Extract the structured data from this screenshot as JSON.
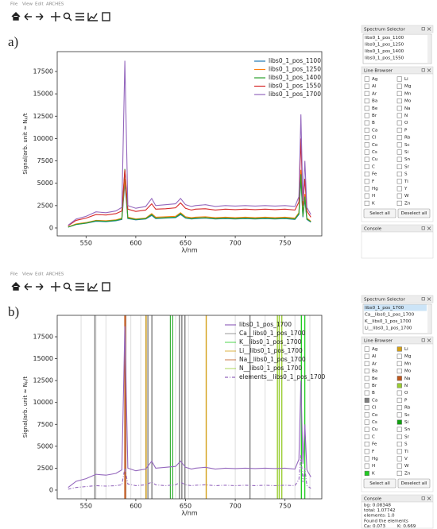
{
  "panels": [
    {
      "label": "a)",
      "menu": [
        "File",
        "View",
        "Edit",
        "ARCHES"
      ],
      "spectrum_selector": {
        "title": "Spectrum Selector",
        "items": [
          "libs0_1_pos_1100",
          "libs0_1_pos_1250",
          "libs0_1_pos_1400",
          "libs0_1_pos_1550"
        ]
      },
      "line_browser": {
        "title": "Line Browser",
        "columns": [
          [
            "Ag",
            "Al",
            "Ar",
            "Ba",
            "Be",
            "Br",
            "B",
            "Ca",
            "Cl",
            "Co",
            "Cs",
            "Cu",
            "C",
            "Fe",
            "F",
            "Hg",
            "H",
            "K"
          ],
          [
            "Li",
            "Mg",
            "Mn",
            "Mo",
            "Na",
            "N",
            "O",
            "P",
            "Rb",
            "Sc",
            "Si",
            "Sn",
            "Sr",
            "S",
            "Ti",
            "Y",
            "W",
            "Zn"
          ]
        ],
        "buttons": [
          "Select all",
          "Deselect all"
        ]
      },
      "console": {
        "title": "Console",
        "lines": []
      }
    },
    {
      "label": "b)",
      "menu": [
        "File",
        "View",
        "Edit",
        "ARCHES"
      ],
      "spectrum_selector": {
        "title": "Spectrum Selector",
        "items": [
          "libs0_1_pos_1700",
          "Ca__libs0_1_pos_1700",
          "K__libs0_1_pos_1700",
          "Li__libs0_1_pos_1700"
        ],
        "selected": 0
      },
      "line_browser": {
        "title": "Line Browser",
        "columns": [
          [
            "Ag",
            "Al",
            "Ar",
            "Ba",
            "Be",
            "Br",
            "B",
            "Ca",
            "Cl",
            "Co",
            "Cs",
            "Cu",
            "C",
            "Fe",
            "F",
            "Hg",
            "H",
            "K"
          ],
          [
            "Li",
            "Mg",
            "Mn",
            "Mo",
            "Na",
            "N",
            "O",
            "P",
            "Rb",
            "Sc",
            "Si",
            "Sn",
            "Sr",
            "S",
            "Ti",
            "V",
            "W",
            "Zn"
          ]
        ],
        "colored": {
          "Ca": "#7f7f7f",
          "K": "#22cc22",
          "Li": "#d4a017",
          "Na": "#c0561a",
          "N": "#9acd32",
          "Si": "#10a010"
        },
        "buttons": [
          "Select all",
          "Deselect all"
        ]
      },
      "console": {
        "title": "Console",
        "lines": [
          [
            "bg: 0.08348"
          ],
          [
            "total: 1.07742"
          ],
          [
            "elements: 1.0"
          ],
          [
            "Found the elements"
          ],
          [
            "Ca: 0.073",
            "K: 0.669"
          ]
        ]
      }
    }
  ],
  "chart_data": [
    {
      "type": "line",
      "xlabel": "λ/nm",
      "ylabel": "Signal/arb. unit ≈ Nₚ/t",
      "xlim": [
        521,
        787
      ],
      "ylim": [
        -890,
        19720
      ],
      "xticks": [
        550,
        600,
        650,
        700,
        750
      ],
      "yticks": [
        0,
        2500,
        5000,
        7500,
        10000,
        12500,
        15000,
        17500
      ],
      "legend": "upper right",
      "x": [
        532,
        540,
        550,
        560,
        570,
        580,
        586,
        589,
        592,
        600,
        610,
        616,
        620,
        630,
        640,
        645,
        650,
        656,
        660,
        670,
        680,
        690,
        700,
        710,
        720,
        730,
        740,
        750,
        760,
        764,
        766,
        768,
        770,
        772,
        776
      ],
      "series": [
        {
          "name": "libs0_1_pos_1100",
          "color": "#1f77b4",
          "values": [
            90,
            380,
            520,
            750,
            700,
            800,
            950,
            5000,
            1050,
            900,
            1000,
            1400,
            1050,
            1100,
            1150,
            1500,
            1100,
            1000,
            1050,
            1100,
            1000,
            1050,
            1000,
            1050,
            1000,
            1050,
            1000,
            1050,
            950,
            1500,
            5500,
            1200,
            3200,
            950,
            650
          ]
        },
        {
          "name": "libs0_1_pos_1250",
          "color": "#ff7f0e",
          "values": [
            120,
            450,
            600,
            850,
            800,
            900,
            1100,
            5500,
            1200,
            1000,
            1100,
            1600,
            1200,
            1250,
            1300,
            1700,
            1250,
            1150,
            1200,
            1250,
            1150,
            1200,
            1150,
            1200,
            1150,
            1200,
            1150,
            1200,
            1100,
            1700,
            6500,
            1400,
            3800,
            1100,
            750
          ]
        },
        {
          "name": "libs0_1_pos_1400",
          "color": "#2ca02c",
          "values": [
            100,
            400,
            550,
            800,
            750,
            850,
            1000,
            6600,
            1100,
            950,
            1050,
            1500,
            1100,
            1150,
            1200,
            1600,
            1150,
            1050,
            1100,
            1150,
            1050,
            1100,
            1050,
            1100,
            1050,
            1100,
            1050,
            1100,
            1000,
            1600,
            6000,
            1300,
            3500,
            1000,
            700
          ]
        },
        {
          "name": "libs0_1_pos_1550",
          "color": "#d62728",
          "values": [
            250,
            850,
            1100,
            1500,
            1450,
            1600,
            1900,
            6500,
            2100,
            1850,
            2000,
            2700,
            2100,
            2150,
            2250,
            2800,
            2200,
            2000,
            2100,
            2150,
            2000,
            2100,
            2050,
            2100,
            2050,
            2100,
            2050,
            2100,
            2000,
            2900,
            10000,
            2500,
            5500,
            1900,
            1200
          ]
        },
        {
          "name": "libs0_1_pos_1700",
          "color": "#9467bd",
          "values": [
            300,
            1000,
            1300,
            1800,
            1700,
            1900,
            2300,
            18700,
            2500,
            2200,
            2400,
            3300,
            2500,
            2600,
            2700,
            3300,
            2600,
            2400,
            2500,
            2600,
            2400,
            2500,
            2450,
            2500,
            2450,
            2500,
            2450,
            2500,
            2400,
            3500,
            12700,
            3000,
            7500,
            2300,
            1500
          ]
        }
      ]
    },
    {
      "type": "line",
      "xlabel": "λ/nm",
      "ylabel": "Signal/arb. unit ≈ Nₚ/t",
      "xlim": [
        521,
        787
      ],
      "ylim": [
        -1000,
        19950
      ],
      "xticks": [
        550,
        600,
        650,
        700,
        750
      ],
      "yticks": [
        0,
        2500,
        5000,
        7500,
        10000,
        12500,
        15000,
        17500
      ],
      "legend": "upper right",
      "x": [
        532,
        540,
        550,
        560,
        570,
        580,
        586,
        589,
        592,
        600,
        610,
        616,
        620,
        630,
        640,
        645,
        650,
        656,
        660,
        670,
        680,
        690,
        700,
        710,
        720,
        730,
        740,
        750,
        760,
        764,
        766,
        768,
        770,
        772,
        776
      ],
      "other_lines": [
        {
          "color": "#dddddd",
          "x": [
            545,
            560,
            570,
            590.5,
            595,
            605,
            640,
            653,
            700,
            730,
            760,
            775
          ]
        },
        {
          "color": "#10a010",
          "x": [
            634.7,
            637.1
          ]
        }
      ],
      "series": [
        {
          "name": "libs0_1_pos_1700",
          "color": "#9467bd",
          "values": [
            300,
            1000,
            1300,
            1800,
            1700,
            1900,
            2300,
            18700,
            2500,
            2200,
            2400,
            3300,
            2500,
            2600,
            2700,
            3300,
            2600,
            2400,
            2500,
            2600,
            2400,
            2500,
            2450,
            2500,
            2450,
            2500,
            2450,
            2500,
            2400,
            3500,
            12500,
            3000,
            7500,
            2300,
            1500
          ]
        },
        {
          "name": "Ca__libs0_1_pos_1700",
          "color": "#7f7f7f",
          "vlines": [
            558.9,
            610.3,
            612.2,
            616.2,
            643.9,
            646.3,
            649.4,
            714.8
          ]
        },
        {
          "name": "K__libs0_1_pos_1700",
          "color": "#22cc22",
          "vlines": [
            766.5,
            769.9
          ]
        },
        {
          "name": "Li__libs0_1_pos_1700",
          "color": "#d4a017",
          "vlines": [
            610.4,
            670.8
          ]
        },
        {
          "name": "Na__libs0_1_pos_1700",
          "color": "#c0561a",
          "vlines": [
            589.0,
            589.6
          ]
        },
        {
          "name": "N__libs0_1_pos_1700",
          "color": "#9acd32",
          "vlines": [
            742.4,
            744.2,
            746.8
          ]
        },
        {
          "name": "elements__libs0_1_pos_1700",
          "color": "#9467bd",
          "dash": "dashdot",
          "values": [
            100,
            300,
            400,
            500,
            450,
            500,
            600,
            2500,
            700,
            500,
            600,
            900,
            600,
            500,
            600,
            900,
            600,
            500,
            550,
            600,
            500,
            550,
            500,
            550,
            500,
            550,
            500,
            550,
            500,
            1200,
            4000,
            900,
            2500,
            500,
            200
          ]
        }
      ]
    }
  ]
}
